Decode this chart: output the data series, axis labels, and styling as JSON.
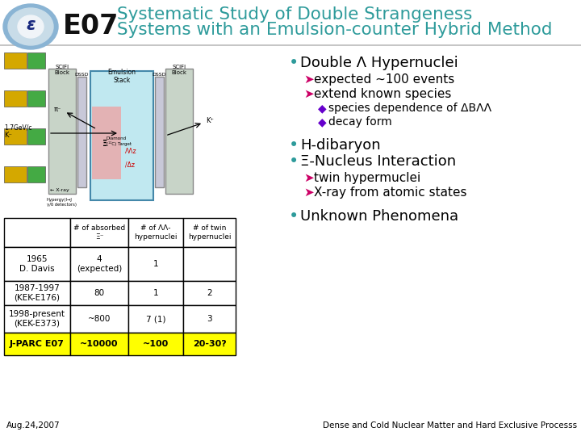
{
  "title_e07": "E07",
  "title_main_line1": "Systematic Study of Double Strangeness",
  "title_main_line2": "Systems with an Emulsion-counter Hybrid Method",
  "title_color": "#2e9b9b",
  "background_color": "#ffffff",
  "table_col_headers": [
    "",
    "# of absorbed\nΞ⁻",
    "# of ΛΛ-\nhypernuclei",
    "# of twin\nhypernuclei"
  ],
  "table_rows": [
    [
      "1965\nD. Davis",
      "4\n(expected)",
      "1",
      ""
    ],
    [
      "1987-1997\n(KEK-E176)",
      "80",
      "1",
      "2"
    ],
    [
      "1998-present\n(KEK-E373)",
      "~800",
      "7 (1)",
      "3"
    ],
    [
      "J-PARC E07",
      "~10000",
      "~100",
      "20-30?"
    ]
  ],
  "table_highlight_color": "#ffff00",
  "bullet_color_main": "#2e9b9b",
  "bullet_color_sub1": "#cc0066",
  "bullet_color_sub2": "#6600cc",
  "bullet_points": [
    {
      "text": "Double Λ Hypernuclei",
      "level": 0,
      "fontsize": 13
    },
    {
      "text": "expected ~100 events",
      "level": 1,
      "fontsize": 11
    },
    {
      "text": "extend known species",
      "level": 1,
      "fontsize": 11
    },
    {
      "text": "species dependence of ΔBΛΛ",
      "level": 2,
      "fontsize": 10
    },
    {
      "text": "decay form",
      "level": 2,
      "fontsize": 10
    },
    {
      "text": "H-dibaryon",
      "level": 0,
      "fontsize": 13
    },
    {
      "text": "Ξ-Nucleus Interaction",
      "level": 0,
      "fontsize": 13
    },
    {
      "text": "twin hypermuclei",
      "level": 1,
      "fontsize": 11
    },
    {
      "text": "X-ray from atomic states",
      "level": 1,
      "fontsize": 11
    },
    {
      "text": "Unknown Phenomena",
      "level": 0,
      "fontsize": 13
    }
  ],
  "footer_left": "Aug.24,2007",
  "footer_right": "Dense and Cold Nuclear Matter and Hard Exclusive Processs",
  "footer_fontsize": 7.5
}
